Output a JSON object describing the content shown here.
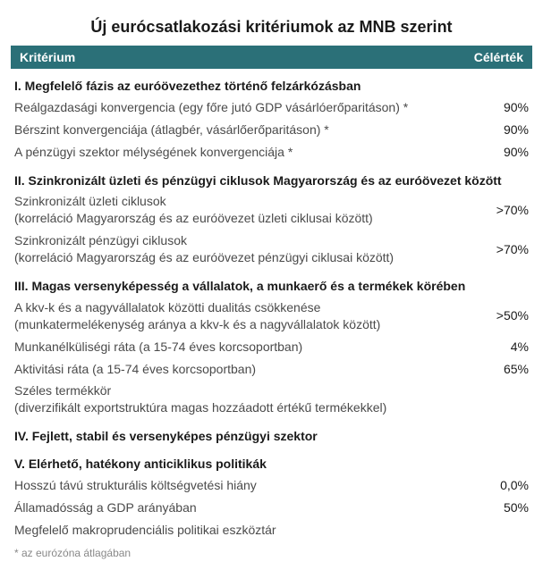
{
  "title": "Új eurócsatlakozási kritériumok az MNB szerint",
  "header": {
    "left": "Kritérium",
    "right": "Célérték"
  },
  "colors": {
    "header_bg": "#2b7078",
    "header_text": "#ffffff",
    "section_text": "#1a1a1a",
    "body_text": "#4a4a4a",
    "value_text": "#1a1a1a",
    "footnote_text": "#888888",
    "background": "#ffffff"
  },
  "typography": {
    "title_fontsize": 18,
    "header_fontsize": 14,
    "section_fontsize": 14,
    "row_fontsize": 14,
    "footnote_fontsize": 12
  },
  "sections": [
    {
      "heading": "I. Megfelelő fázis az euróövezethez történő felzárkózásban",
      "rows": [
        {
          "label": "Reálgazdasági konvergencia (egy főre jutó GDP vásárlóerőparitáson) *",
          "value": "90%"
        },
        {
          "label": "Bérszint konvergenciája (átlagbér, vásárlőerőparitáson) *",
          "value": "90%"
        },
        {
          "label": "A pénzügyi szektor mélységének konvergenciája *",
          "value": "90%"
        }
      ]
    },
    {
      "heading": "II. Szinkronizált üzleti és pénzügyi ciklusok Magyarország és az euróövezet között",
      "rows": [
        {
          "label": "Szinkronizált üzleti ciklusok\n(korreláció Magyarország és az euróövezet üzleti ciklusai között)",
          "value": ">70%"
        },
        {
          "label": "Szinkronizált pénzügyi ciklusok\n(korreláció Magyarország és az euróövezet pénzügyi ciklusai között)",
          "value": ">70%"
        }
      ]
    },
    {
      "heading": "III. Magas versenyképesség a vállalatok, a munkaerő és a termékek körében",
      "rows": [
        {
          "label": "A kkv-k és a nagyvállalatok közötti dualitás csökkenése\n(munkatermelékenység aránya a kkv-k és a nagyvállalatok között)",
          "value": ">50%"
        },
        {
          "label": "Munkanélküliségi ráta (a 15-74 éves korcsoportban)",
          "value": "4%"
        },
        {
          "label": "Aktivitási ráta (a 15-74 éves korcsoportban)",
          "value": "65%"
        },
        {
          "label": "Széles termékkör\n(diverzifikált exportstruktúra magas hozzáadott értékű termékekkel)",
          "value": ""
        }
      ]
    },
    {
      "heading": "IV. Fejlett, stabil és versenyképes pénzügyi szektor",
      "rows": []
    },
    {
      "heading": "V. Elérhető, hatékony anticiklikus politikák",
      "rows": [
        {
          "label": "Hosszú távú strukturális költségvetési hiány",
          "value": "0,0%"
        },
        {
          "label": "Államadósság a GDP arányában",
          "value": "50%"
        },
        {
          "label": "Megfelelő makroprudenciális politikai eszköztár",
          "value": ""
        }
      ]
    }
  ],
  "footnote": "* az eurózóna átlagában"
}
